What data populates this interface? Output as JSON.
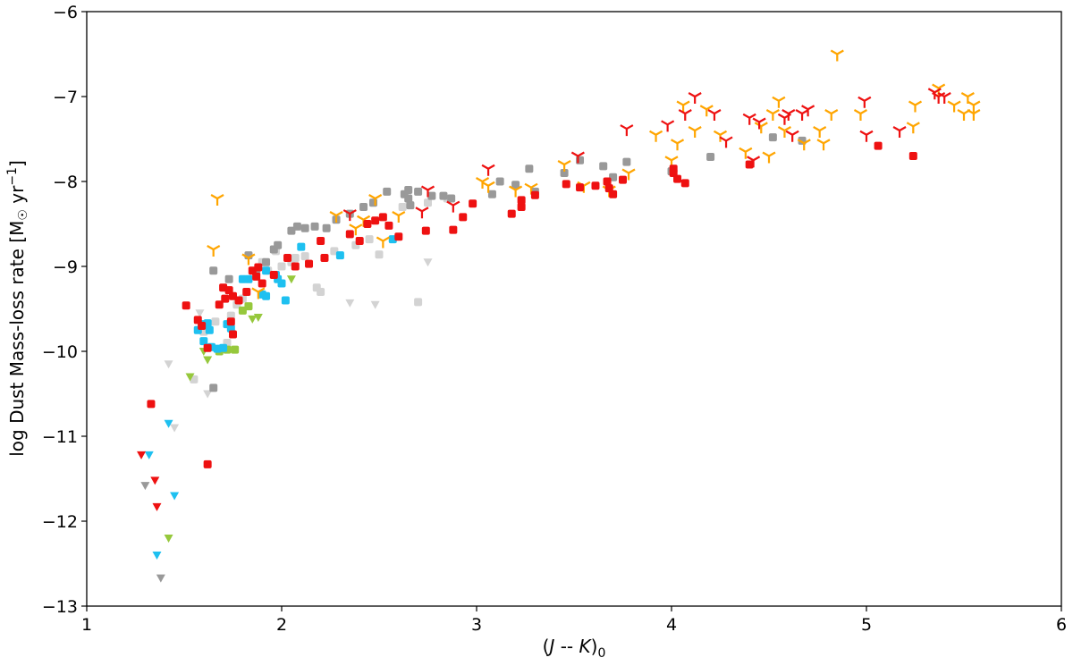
{
  "chart_data": {
    "type": "scatter",
    "title": "",
    "xlabel": "(J -- K)0",
    "xlabel_parts": {
      "open": "(",
      "j": "J",
      "sep": " -- ",
      "k": "K",
      "close": ")",
      "sub": "0"
    },
    "ylabel": "log Dust Mass-loss rate  [M☉ yr−1]",
    "ylabel_parts": {
      "main": "log Dust Mass-loss rate  [M",
      "sun": "☉",
      "mid": " yr",
      "sup": "−1",
      "close": "]"
    },
    "xlim": [
      1,
      6
    ],
    "ylim": [
      -13,
      -6
    ],
    "xticks": [
      1,
      2,
      3,
      4,
      5,
      6
    ],
    "yticks": [
      -13,
      -12,
      -11,
      -10,
      -9,
      -8,
      -7,
      -6
    ],
    "grid": false,
    "colors": {
      "red": "#ee1111",
      "gray": "#999999",
      "lightgray": "#d3d3d3",
      "blue": "#1ec0f0",
      "green": "#96c83c",
      "orange": "#ffa500"
    },
    "series": [
      {
        "marker": "square",
        "color": "red",
        "points": [
          [
            1.33,
            -10.62
          ],
          [
            1.51,
            -9.46
          ],
          [
            1.57,
            -9.63
          ],
          [
            1.59,
            -9.7
          ],
          [
            1.62,
            -11.33
          ],
          [
            1.62,
            -9.96
          ],
          [
            1.68,
            -9.45
          ],
          [
            1.7,
            -9.25
          ],
          [
            1.71,
            -9.38
          ],
          [
            1.73,
            -9.28
          ],
          [
            1.74,
            -9.65
          ],
          [
            1.75,
            -9.35
          ],
          [
            1.75,
            -9.8
          ],
          [
            1.78,
            -9.4
          ],
          [
            1.82,
            -9.3
          ],
          [
            1.85,
            -9.05
          ],
          [
            1.87,
            -9.12
          ],
          [
            1.88,
            -9.01
          ],
          [
            1.9,
            -9.2
          ],
          [
            1.96,
            -9.1
          ],
          [
            2.03,
            -8.9
          ],
          [
            2.07,
            -9.0
          ],
          [
            2.14,
            -8.97
          ],
          [
            2.2,
            -8.7
          ],
          [
            2.22,
            -8.9
          ],
          [
            2.35,
            -8.62
          ],
          [
            2.4,
            -8.7
          ],
          [
            2.44,
            -8.5
          ],
          [
            2.48,
            -8.46
          ],
          [
            2.52,
            -8.42
          ],
          [
            2.55,
            -8.52
          ],
          [
            2.6,
            -8.65
          ],
          [
            2.74,
            -8.58
          ],
          [
            2.88,
            -8.57
          ],
          [
            2.93,
            -8.42
          ],
          [
            2.98,
            -8.26
          ],
          [
            3.18,
            -8.38
          ],
          [
            3.23,
            -8.3
          ],
          [
            3.23,
            -8.22
          ],
          [
            3.3,
            -8.16
          ],
          [
            3.46,
            -8.03
          ],
          [
            3.53,
            -8.07
          ],
          [
            3.61,
            -8.05
          ],
          [
            3.67,
            -8.0
          ],
          [
            3.68,
            -8.08
          ],
          [
            3.7,
            -8.15
          ],
          [
            3.75,
            -7.98
          ],
          [
            4.01,
            -7.85
          ],
          [
            4.01,
            -7.9
          ],
          [
            4.03,
            -7.97
          ],
          [
            4.07,
            -8.02
          ],
          [
            4.4,
            -7.8
          ],
          [
            5.06,
            -7.58
          ],
          [
            5.24,
            -7.7
          ]
        ]
      },
      {
        "marker": "triangle-down",
        "color": "red",
        "points": [
          [
            1.28,
            -11.22
          ],
          [
            1.35,
            -11.52
          ],
          [
            1.36,
            -11.83
          ]
        ]
      },
      {
        "marker": "square",
        "color": "gray",
        "points": [
          [
            1.65,
            -10.43
          ],
          [
            1.65,
            -9.05
          ],
          [
            1.73,
            -9.15
          ],
          [
            1.83,
            -8.87
          ],
          [
            1.87,
            -9.07
          ],
          [
            1.92,
            -8.95
          ],
          [
            1.96,
            -8.8
          ],
          [
            1.98,
            -8.75
          ],
          [
            2.05,
            -8.58
          ],
          [
            2.08,
            -8.53
          ],
          [
            2.12,
            -8.55
          ],
          [
            2.17,
            -8.53
          ],
          [
            2.23,
            -8.55
          ],
          [
            2.28,
            -8.45
          ],
          [
            2.35,
            -8.38
          ],
          [
            2.42,
            -8.3
          ],
          [
            2.47,
            -8.25
          ],
          [
            2.54,
            -8.12
          ],
          [
            2.63,
            -8.15
          ],
          [
            2.65,
            -8.2
          ],
          [
            2.65,
            -8.1
          ],
          [
            2.66,
            -8.28
          ],
          [
            2.7,
            -8.12
          ],
          [
            2.77,
            -8.17
          ],
          [
            2.83,
            -8.17
          ],
          [
            2.87,
            -8.2
          ],
          [
            3.08,
            -8.15
          ],
          [
            3.12,
            -8.0
          ],
          [
            3.2,
            -8.04
          ],
          [
            3.27,
            -7.85
          ],
          [
            3.3,
            -8.12
          ],
          [
            3.45,
            -7.9
          ],
          [
            3.53,
            -7.75
          ],
          [
            3.65,
            -7.82
          ],
          [
            3.7,
            -7.95
          ],
          [
            3.77,
            -7.77
          ],
          [
            4.0,
            -7.88
          ],
          [
            4.2,
            -7.71
          ],
          [
            4.52,
            -7.48
          ],
          [
            4.67,
            -7.52
          ]
        ]
      },
      {
        "marker": "triangle-down",
        "color": "gray",
        "points": [
          [
            1.3,
            -11.58
          ],
          [
            1.38,
            -12.67
          ]
        ]
      },
      {
        "marker": "square",
        "color": "lightgray",
        "points": [
          [
            1.55,
            -10.33
          ],
          [
            1.6,
            -9.77
          ],
          [
            1.66,
            -9.65
          ],
          [
            1.72,
            -9.9
          ],
          [
            1.74,
            -9.58
          ],
          [
            1.77,
            -9.45
          ],
          [
            1.8,
            -9.38
          ],
          [
            1.9,
            -8.95
          ],
          [
            1.93,
            -9.05
          ],
          [
            1.97,
            -8.82
          ],
          [
            2.0,
            -9.0
          ],
          [
            2.05,
            -8.95
          ],
          [
            2.07,
            -8.9
          ],
          [
            2.12,
            -8.88
          ],
          [
            2.18,
            -9.25
          ],
          [
            2.2,
            -9.3
          ],
          [
            2.27,
            -8.82
          ],
          [
            2.38,
            -8.75
          ],
          [
            2.45,
            -8.68
          ],
          [
            2.5,
            -8.86
          ],
          [
            2.62,
            -8.3
          ],
          [
            2.7,
            -9.42
          ],
          [
            2.75,
            -8.25
          ],
          [
            2.85,
            -8.2
          ]
        ]
      },
      {
        "marker": "triangle-down",
        "color": "lightgray",
        "points": [
          [
            1.42,
            -10.15
          ],
          [
            1.45,
            -10.9
          ],
          [
            1.58,
            -9.55
          ],
          [
            1.62,
            -10.5
          ],
          [
            2.35,
            -9.43
          ],
          [
            2.48,
            -9.45
          ],
          [
            2.75,
            -8.95
          ]
        ]
      },
      {
        "marker": "square",
        "color": "blue",
        "points": [
          [
            1.57,
            -9.75
          ],
          [
            1.59,
            -9.68
          ],
          [
            1.6,
            -9.88
          ],
          [
            1.62,
            -9.67
          ],
          [
            1.63,
            -9.75
          ],
          [
            1.64,
            -9.95
          ],
          [
            1.67,
            -9.97
          ],
          [
            1.7,
            -9.96
          ],
          [
            1.72,
            -9.68
          ],
          [
            1.74,
            -9.73
          ],
          [
            1.8,
            -9.15
          ],
          [
            1.83,
            -9.15
          ],
          [
            1.9,
            -9.33
          ],
          [
            1.92,
            -9.35
          ],
          [
            1.92,
            -9.05
          ],
          [
            1.97,
            -9.1
          ],
          [
            1.98,
            -9.15
          ],
          [
            2.0,
            -9.2
          ],
          [
            2.02,
            -9.4
          ],
          [
            2.1,
            -8.77
          ],
          [
            2.3,
            -8.87
          ],
          [
            2.57,
            -8.68
          ]
        ]
      },
      {
        "marker": "triangle-down",
        "color": "blue",
        "points": [
          [
            1.32,
            -11.22
          ],
          [
            1.36,
            -12.4
          ],
          [
            1.42,
            -10.85
          ],
          [
            1.45,
            -11.7
          ]
        ]
      },
      {
        "marker": "square",
        "color": "green",
        "points": [
          [
            1.68,
            -10.0
          ],
          [
            1.72,
            -9.98
          ],
          [
            1.76,
            -9.98
          ],
          [
            1.8,
            -9.52
          ],
          [
            1.83,
            -9.47
          ]
        ]
      },
      {
        "marker": "triangle-down",
        "color": "green",
        "points": [
          [
            1.53,
            -10.3
          ],
          [
            1.6,
            -10.0
          ],
          [
            1.62,
            -10.1
          ],
          [
            1.85,
            -9.62
          ],
          [
            1.88,
            -9.6
          ],
          [
            2.05,
            -9.15
          ],
          [
            1.42,
            -12.2
          ]
        ]
      },
      {
        "marker": "tri-down",
        "color": "red",
        "points": [
          [
            2.35,
            -8.38
          ],
          [
            2.72,
            -8.35
          ],
          [
            2.75,
            -8.1
          ],
          [
            2.88,
            -8.28
          ],
          [
            3.06,
            -7.85
          ],
          [
            3.52,
            -7.7
          ],
          [
            3.77,
            -7.38
          ],
          [
            3.98,
            -7.33
          ],
          [
            4.07,
            -7.2
          ],
          [
            4.12,
            -7.0
          ],
          [
            4.22,
            -7.2
          ],
          [
            4.28,
            -7.52
          ],
          [
            4.4,
            -7.25
          ],
          [
            4.45,
            -7.3
          ],
          [
            4.58,
            -7.25
          ],
          [
            4.6,
            -7.2
          ],
          [
            4.62,
            -7.45
          ],
          [
            4.67,
            -7.2
          ],
          [
            4.7,
            -7.15
          ],
          [
            4.99,
            -7.05
          ],
          [
            5.17,
            -7.4
          ],
          [
            5.35,
            -6.95
          ],
          [
            5.37,
            -7.0
          ],
          [
            5.4,
            -7.0
          ],
          [
            4.42,
            -7.75
          ],
          [
            5.0,
            -7.45
          ]
        ]
      },
      {
        "marker": "tri-down",
        "color": "orange",
        "points": [
          [
            1.65,
            -8.8
          ],
          [
            1.67,
            -8.2
          ],
          [
            1.83,
            -8.9
          ],
          [
            1.88,
            -9.3
          ],
          [
            2.28,
            -8.4
          ],
          [
            2.38,
            -8.55
          ],
          [
            2.42,
            -8.45
          ],
          [
            2.48,
            -8.2
          ],
          [
            2.52,
            -8.7
          ],
          [
            2.6,
            -8.4
          ],
          [
            3.03,
            -8.0
          ],
          [
            3.06,
            -8.05
          ],
          [
            3.2,
            -8.1
          ],
          [
            3.28,
            -8.07
          ],
          [
            3.45,
            -7.8
          ],
          [
            3.55,
            -8.05
          ],
          [
            3.68,
            -8.1
          ],
          [
            3.78,
            -7.9
          ],
          [
            3.92,
            -7.45
          ],
          [
            4.0,
            -7.75
          ],
          [
            4.03,
            -7.55
          ],
          [
            4.06,
            -7.1
          ],
          [
            4.12,
            -7.4
          ],
          [
            4.18,
            -7.15
          ],
          [
            4.25,
            -7.45
          ],
          [
            4.38,
            -7.65
          ],
          [
            4.46,
            -7.35
          ],
          [
            4.52,
            -7.2
          ],
          [
            4.55,
            -7.05
          ],
          [
            4.58,
            -7.4
          ],
          [
            4.68,
            -7.55
          ],
          [
            4.76,
            -7.4
          ],
          [
            4.82,
            -7.2
          ],
          [
            4.85,
            -6.5
          ],
          [
            4.97,
            -7.2
          ],
          [
            5.24,
            -7.35
          ],
          [
            5.25,
            -7.1
          ],
          [
            5.37,
            -6.9
          ],
          [
            5.45,
            -7.1
          ],
          [
            5.5,
            -7.2
          ],
          [
            5.52,
            -7.0
          ],
          [
            5.55,
            -7.1
          ],
          [
            5.55,
            -7.2
          ],
          [
            4.5,
            -7.7
          ],
          [
            4.78,
            -7.55
          ]
        ]
      }
    ]
  }
}
